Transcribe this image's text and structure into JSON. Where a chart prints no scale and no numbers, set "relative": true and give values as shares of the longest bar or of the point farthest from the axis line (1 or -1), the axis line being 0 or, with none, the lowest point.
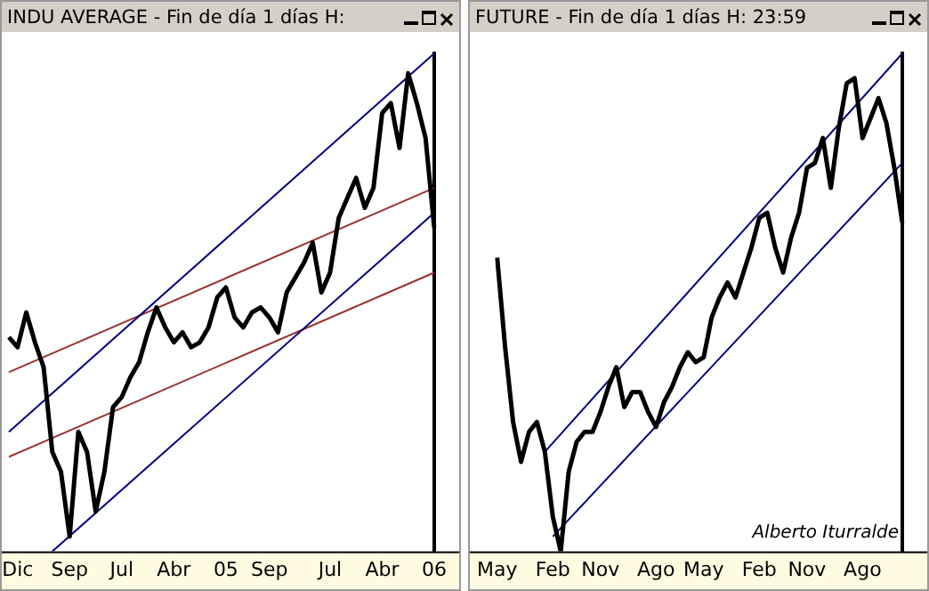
{
  "chart_data": [
    {
      "type": "line",
      "title": "INDU AVERAGE - Fin de día 1 días H:",
      "relative": true,
      "categories": [
        null,
        "Dic",
        null,
        null,
        null,
        null,
        null,
        "Sep",
        null,
        null,
        null,
        null,
        null,
        "Jul",
        null,
        null,
        null,
        null,
        null,
        "Abr",
        null,
        null,
        null,
        null,
        null,
        "05",
        null,
        null,
        null,
        null,
        "Sep",
        null,
        null,
        null,
        null,
        null,
        null,
        "Jul",
        null,
        null,
        null,
        null,
        null,
        "Abr",
        null,
        null,
        null,
        null,
        null,
        "06"
      ],
      "series": [
        {
          "color": "#000000",
          "values": [
            0.43,
            0.41,
            0.48,
            0.42,
            0.37,
            0.2,
            0.16,
            0.03,
            0.24,
            0.2,
            0.08,
            0.16,
            0.29,
            0.31,
            0.35,
            0.38,
            0.44,
            0.49,
            0.45,
            0.42,
            0.44,
            0.41,
            0.42,
            0.45,
            0.51,
            0.53,
            0.47,
            0.45,
            0.48,
            0.49,
            0.47,
            0.44,
            0.52,
            0.55,
            0.58,
            0.62,
            0.52,
            0.56,
            0.67,
            0.71,
            0.75,
            0.69,
            0.73,
            0.88,
            0.9,
            0.81,
            0.96,
            0.9,
            0.83,
            0.65
          ]
        },
        {
          "color": "#000080",
          "values": [
            0.24,
            null,
            null,
            null,
            null,
            null,
            null,
            null,
            null,
            null,
            null,
            null,
            null,
            null,
            null,
            null,
            null,
            null,
            null,
            null,
            null,
            null,
            null,
            null,
            null,
            null,
            null,
            null,
            null,
            null,
            null,
            null,
            null,
            null,
            null,
            null,
            null,
            null,
            null,
            null,
            null,
            null,
            null,
            null,
            null,
            null,
            null,
            null,
            null,
            1
          ]
        },
        {
          "color": "#000080",
          "values": [
            null,
            null,
            null,
            null,
            null,
            0,
            null,
            null,
            null,
            null,
            null,
            null,
            null,
            null,
            null,
            null,
            null,
            null,
            null,
            null,
            null,
            null,
            null,
            null,
            null,
            null,
            null,
            null,
            null,
            null,
            null,
            null,
            null,
            null,
            null,
            null,
            null,
            null,
            null,
            null,
            null,
            null,
            null,
            null,
            null,
            null,
            null,
            null,
            null,
            0.68
          ]
        },
        {
          "color": "#993333",
          "values": [
            0.36,
            null,
            null,
            null,
            null,
            null,
            null,
            null,
            null,
            null,
            null,
            null,
            null,
            null,
            null,
            null,
            null,
            null,
            null,
            null,
            null,
            null,
            null,
            null,
            null,
            null,
            null,
            null,
            null,
            null,
            null,
            null,
            null,
            null,
            null,
            null,
            null,
            null,
            null,
            null,
            null,
            null,
            null,
            null,
            null,
            null,
            null,
            null,
            null,
            0.73
          ]
        },
        {
          "color": "#993333",
          "values": [
            0.19,
            null,
            null,
            null,
            null,
            null,
            null,
            null,
            null,
            null,
            null,
            null,
            null,
            null,
            null,
            null,
            null,
            null,
            null,
            null,
            null,
            null,
            null,
            null,
            null,
            null,
            null,
            null,
            null,
            null,
            null,
            null,
            null,
            null,
            null,
            null,
            null,
            null,
            null,
            null,
            null,
            null,
            null,
            null,
            null,
            null,
            null,
            null,
            null,
            0.56
          ]
        }
      ]
    },
    {
      "type": "line",
      "title": "FUTURE - Fin de día 1 días H: 23:59",
      "relative": true,
      "annotations": [
        "Alberto Iturralde"
      ],
      "categories": [
        "May",
        null,
        null,
        null,
        null,
        null,
        null,
        "Feb",
        null,
        null,
        null,
        null,
        null,
        "Nov",
        null,
        null,
        null,
        null,
        null,
        null,
        "Ago",
        null,
        null,
        null,
        null,
        null,
        "May",
        null,
        null,
        null,
        null,
        null,
        null,
        "Feb",
        null,
        null,
        null,
        null,
        null,
        "Nov",
        null,
        null,
        null,
        null,
        null,
        null,
        "Ago",
        null,
        null,
        null,
        null,
        null
      ],
      "series": [
        {
          "color": "#000000",
          "values": [
            0.59,
            0.41,
            0.26,
            0.18,
            0.24,
            0.26,
            0.2,
            0.07,
            0,
            0.16,
            0.22,
            0.24,
            0.24,
            0.28,
            0.33,
            0.37,
            0.29,
            0.32,
            0.32,
            0.28,
            0.25,
            0.3,
            0.33,
            0.37,
            0.4,
            0.38,
            0.39,
            0.47,
            0.51,
            0.54,
            0.51,
            0.56,
            0.61,
            0.67,
            0.68,
            0.61,
            0.56,
            0.63,
            0.68,
            0.77,
            0.78,
            0.83,
            0.73,
            0.85,
            0.94,
            0.95,
            0.83,
            0.87,
            0.91,
            0.86,
            0.77,
            0.66
          ]
        },
        {
          "color": "#000080",
          "values": [
            null,
            null,
            null,
            null,
            null,
            null,
            0.2,
            null,
            null,
            null,
            null,
            null,
            null,
            null,
            null,
            null,
            null,
            null,
            null,
            null,
            null,
            null,
            null,
            null,
            null,
            null,
            null,
            null,
            null,
            null,
            null,
            null,
            null,
            null,
            null,
            null,
            null,
            null,
            null,
            null,
            null,
            null,
            null,
            null,
            null,
            null,
            null,
            null,
            null,
            null,
            null,
            1
          ]
        },
        {
          "color": "#000080",
          "values": [
            null,
            null,
            null,
            null,
            null,
            null,
            null,
            0.03,
            null,
            null,
            null,
            null,
            null,
            null,
            null,
            null,
            null,
            null,
            null,
            null,
            null,
            null,
            null,
            null,
            null,
            null,
            null,
            null,
            null,
            null,
            null,
            null,
            null,
            null,
            null,
            null,
            null,
            null,
            null,
            null,
            null,
            null,
            null,
            null,
            null,
            null,
            null,
            null,
            null,
            null,
            null,
            0.78
          ]
        }
      ]
    }
  ]
}
